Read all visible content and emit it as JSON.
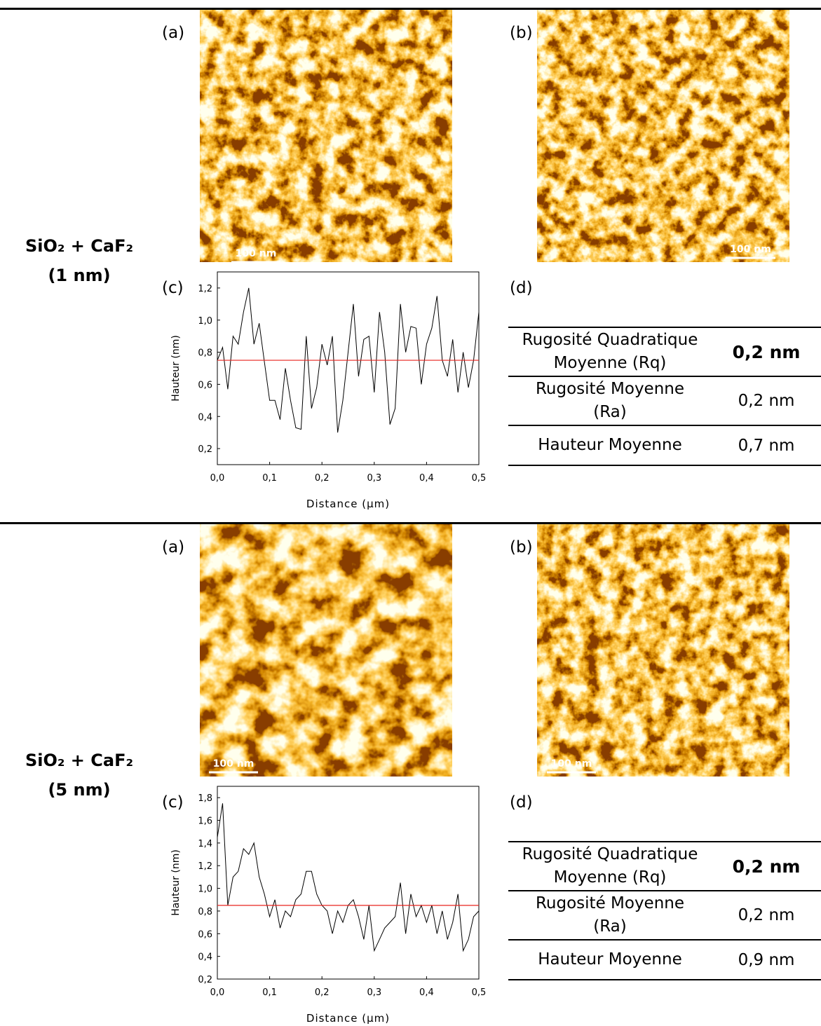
{
  "sections": [
    {
      "sample": [
        "SiO₂ + CaF₂",
        "(1 nm)"
      ],
      "panel_a": "(a)",
      "panel_b": "(b)",
      "panel_c": "(c)",
      "panel_d": "(d)",
      "scale_a": "100 nm",
      "scale_b": "100 nm",
      "table": [
        {
          "label": [
            "Rugosité Quadratique",
            "Moyenne (Rq)"
          ],
          "value": "0,2 nm",
          "bold": true
        },
        {
          "label": [
            "Rugosité Moyenne",
            "(Ra)"
          ],
          "value": "0,2 nm",
          "bold": false
        },
        {
          "label": [
            "Hauteur Moyenne"
          ],
          "value": "0,7 nm",
          "bold": false
        }
      ]
    },
    {
      "sample": [
        "SiO₂ + CaF₂",
        "(5 nm)"
      ],
      "panel_a": "(a)",
      "panel_b": "(b)",
      "panel_c": "(c)",
      "panel_d": "(d)",
      "scale_a": "100 nm",
      "scale_b": "100 nm",
      "table": [
        {
          "label": [
            "Rugosité Quadratique",
            "Moyenne (Rq)"
          ],
          "value": "0,2 nm",
          "bold": true
        },
        {
          "label": [
            "Rugosité Moyenne",
            "(Ra)"
          ],
          "value": "0,2 nm",
          "bold": false
        },
        {
          "label": [
            "Hauteur Moyenne"
          ],
          "value": "0,9 nm",
          "bold": false
        }
      ]
    }
  ],
  "chart_data": [
    {
      "type": "line",
      "xlabel": "Distance (µm)",
      "ylabel": "Hauteur (nm)",
      "x": [
        0,
        0.01,
        0.02,
        0.03,
        0.04,
        0.05,
        0.06,
        0.07,
        0.08,
        0.09,
        0.1,
        0.11,
        0.12,
        0.13,
        0.14,
        0.15,
        0.16,
        0.17,
        0.18,
        0.19,
        0.2,
        0.21,
        0.22,
        0.23,
        0.24,
        0.25,
        0.26,
        0.27,
        0.28,
        0.29,
        0.3,
        0.31,
        0.32,
        0.33,
        0.34,
        0.35,
        0.36,
        0.37,
        0.38,
        0.39,
        0.4,
        0.41,
        0.42,
        0.43,
        0.44,
        0.45,
        0.46,
        0.47,
        0.48,
        0.49,
        0.5
      ],
      "values": [
        0.75,
        0.83,
        0.57,
        0.9,
        0.85,
        1.05,
        1.2,
        0.85,
        0.98,
        0.74,
        0.5,
        0.5,
        0.38,
        0.7,
        0.5,
        0.33,
        0.32,
        0.9,
        0.45,
        0.58,
        0.85,
        0.72,
        0.9,
        0.3,
        0.5,
        0.8,
        1.1,
        0.65,
        0.88,
        0.9,
        0.55,
        1.05,
        0.8,
        0.35,
        0.45,
        1.1,
        0.8,
        0.96,
        0.95,
        0.6,
        0.85,
        0.95,
        1.15,
        0.75,
        0.65,
        0.88,
        0.55,
        0.8,
        0.58,
        0.75,
        1.05
      ],
      "color": "#000000",
      "reference_line": {
        "value": 0.75,
        "color": "#e8231e"
      },
      "xlim": [
        0,
        0.5
      ],
      "ylim": [
        0.1,
        1.3
      ],
      "xticks": [
        {
          "value": 0,
          "label": "0,0"
        },
        {
          "value": 0.1,
          "label": "0,1"
        },
        {
          "value": 0.2,
          "label": "0,2"
        },
        {
          "value": 0.3,
          "label": "0,3"
        },
        {
          "value": 0.4,
          "label": "0,4"
        },
        {
          "value": 0.5,
          "label": "0,5"
        }
      ],
      "yticks": [
        {
          "value": 0.2,
          "label": "0,2"
        },
        {
          "value": 0.4,
          "label": "0,4"
        },
        {
          "value": 0.6,
          "label": "0,6"
        },
        {
          "value": 0.8,
          "label": "0,8"
        },
        {
          "value": 1.0,
          "label": "1,0"
        },
        {
          "value": 1.2,
          "label": "1,2"
        }
      ]
    },
    {
      "type": "line",
      "xlabel": "Distance (µm)",
      "ylabel": "Hauteur (nm)",
      "x": [
        0,
        0.01,
        0.02,
        0.03,
        0.04,
        0.05,
        0.06,
        0.07,
        0.08,
        0.09,
        0.1,
        0.11,
        0.12,
        0.13,
        0.14,
        0.15,
        0.16,
        0.17,
        0.18,
        0.19,
        0.2,
        0.21,
        0.22,
        0.23,
        0.24,
        0.25,
        0.26,
        0.27,
        0.28,
        0.29,
        0.3,
        0.31,
        0.32,
        0.33,
        0.34,
        0.35,
        0.36,
        0.37,
        0.38,
        0.39,
        0.4,
        0.41,
        0.42,
        0.43,
        0.44,
        0.45,
        0.46,
        0.47,
        0.48,
        0.49,
        0.5
      ],
      "values": [
        1.45,
        1.75,
        0.85,
        1.1,
        1.15,
        1.35,
        1.3,
        1.4,
        1.1,
        0.95,
        0.75,
        0.9,
        0.65,
        0.8,
        0.75,
        0.9,
        0.95,
        1.15,
        1.15,
        0.95,
        0.85,
        0.8,
        0.6,
        0.8,
        0.7,
        0.85,
        0.9,
        0.75,
        0.55,
        0.85,
        0.45,
        0.55,
        0.65,
        0.7,
        0.75,
        1.05,
        0.6,
        0.95,
        0.75,
        0.85,
        0.7,
        0.85,
        0.6,
        0.8,
        0.55,
        0.7,
        0.95,
        0.45,
        0.55,
        0.75,
        0.8
      ],
      "color": "#000000",
      "reference_line": {
        "value": 0.85,
        "color": "#e8231e"
      },
      "xlim": [
        0,
        0.5
      ],
      "ylim": [
        0.2,
        1.9
      ],
      "xticks": [
        {
          "value": 0,
          "label": "0,0"
        },
        {
          "value": 0.1,
          "label": "0,1"
        },
        {
          "value": 0.2,
          "label": "0,2"
        },
        {
          "value": 0.3,
          "label": "0,3"
        },
        {
          "value": 0.4,
          "label": "0,4"
        },
        {
          "value": 0.5,
          "label": "0,5"
        }
      ],
      "yticks": [
        {
          "value": 0.2,
          "label": "0,2"
        },
        {
          "value": 0.4,
          "label": "0,4"
        },
        {
          "value": 0.6,
          "label": "0,6"
        },
        {
          "value": 0.8,
          "label": "0,8"
        },
        {
          "value": 1.0,
          "label": "1,0"
        },
        {
          "value": 1.2,
          "label": "1,2"
        },
        {
          "value": 1.4,
          "label": "1,4"
        },
        {
          "value": 1.6,
          "label": "1,6"
        },
        {
          "value": 1.8,
          "label": "1,8"
        }
      ]
    }
  ]
}
